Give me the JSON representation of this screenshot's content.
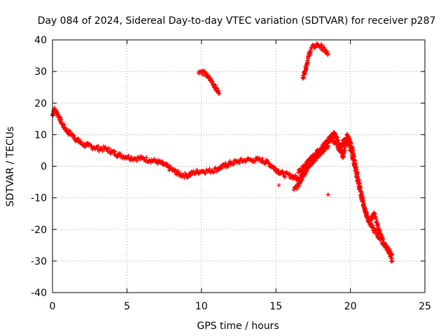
{
  "chart_data": {
    "type": "scatter",
    "title": "Day 084 of 2024, Sidereal Day-to-day VTEC variation (SDTVAR) for receiver p287",
    "xlabel": "GPS time / hours",
    "ylabel": "SDTVAR / TECUs",
    "xlim": [
      0,
      25
    ],
    "ylim": [
      -40,
      40
    ],
    "xticks": [
      0,
      5,
      10,
      15,
      20,
      25
    ],
    "yticks": [
      -40,
      -30,
      -20,
      -10,
      0,
      10,
      20,
      30,
      40
    ],
    "xtick_labels": [
      "0",
      "5",
      "10",
      "15",
      "20",
      "25"
    ],
    "ytick_labels": [
      "-40",
      "-30",
      "-20",
      "-10",
      "0",
      "10",
      "20",
      "30",
      "40"
    ],
    "grid": true,
    "marker": "+",
    "colors": {
      "series": "#ff0000",
      "grid": "#a0a0a0",
      "frame": "#000000"
    },
    "series": [
      {
        "name": "main",
        "x": [
          0.0,
          0.1,
          0.3,
          0.5,
          0.7,
          1.0,
          1.3,
          1.6,
          2.0,
          2.4,
          2.8,
          3.2,
          3.6,
          4.0,
          4.5,
          5.0,
          5.5,
          6.0,
          6.5,
          7.0,
          7.5,
          8.0,
          8.5,
          9.0,
          9.5,
          10.0,
          10.5,
          11.0,
          11.5,
          12.0,
          12.5,
          13.0,
          13.5,
          14.0,
          14.5,
          15.0,
          15.5,
          16.0,
          16.5,
          17.0,
          17.5,
          18.0,
          18.3
        ],
        "y": [
          16.0,
          18.0,
          17.0,
          15.0,
          13.0,
          11.0,
          10.0,
          8.5,
          7.0,
          6.5,
          6.0,
          5.5,
          5.5,
          4.5,
          3.5,
          3.0,
          2.5,
          2.5,
          2.0,
          1.5,
          0.5,
          -1.0,
          -2.5,
          -3.0,
          -2.0,
          -1.5,
          -1.5,
          -1.0,
          0.0,
          1.0,
          1.5,
          2.0,
          2.0,
          2.0,
          1.0,
          -1.0,
          -2.5,
          -3.0,
          -4.0,
          -1.0,
          1.5,
          4.5,
          6.5
        ]
      },
      {
        "name": "segment-10h",
        "x": [
          9.8,
          10.0,
          10.2,
          10.4,
          10.6,
          10.8,
          11.0,
          11.2
        ],
        "y": [
          29.5,
          29.8,
          29.5,
          28.5,
          27.5,
          26.0,
          24.5,
          23.0
        ]
      },
      {
        "name": "segment-17h",
        "x": [
          16.8,
          17.0,
          17.2,
          17.4,
          17.6,
          17.8,
          18.0,
          18.2,
          18.5
        ],
        "y": [
          28.0,
          31.0,
          35.0,
          37.5,
          38.0,
          38.5,
          38.0,
          37.0,
          35.5
        ]
      },
      {
        "name": "evening-a",
        "x": [
          16.2,
          16.5,
          16.8,
          17.2,
          17.6,
          18.0,
          18.4,
          18.7,
          19.0,
          19.3,
          19.6,
          19.9,
          20.2,
          20.5,
          20.8,
          21.1,
          21.4,
          21.7,
          22.0,
          22.3,
          22.6,
          22.8
        ],
        "y": [
          -7.5,
          -6.0,
          -3.0,
          0.0,
          2.5,
          4.5,
          6.0,
          9.0,
          7.5,
          5.0,
          8.5,
          7.0,
          2.0,
          -5.0,
          -11.0,
          -16.0,
          -19.0,
          -21.0,
          -23.0,
          -25.0,
          -27.0,
          -30.0
        ]
      },
      {
        "name": "evening-b",
        "x": [
          16.5,
          17.0,
          17.5,
          18.0,
          18.5,
          18.9,
          19.2,
          19.5,
          19.8,
          20.1,
          20.4,
          20.7,
          21.0,
          21.3,
          21.6,
          21.9,
          22.2,
          22.5,
          22.8
        ],
        "y": [
          -2.0,
          0.5,
          3.0,
          5.5,
          8.0,
          10.5,
          7.5,
          3.0,
          10.0,
          6.0,
          -1.0,
          -8.0,
          -14.0,
          -17.5,
          -15.0,
          -20.0,
          -24.0,
          -26.0,
          -28.0
        ]
      },
      {
        "name": "outliers",
        "x": [
          15.2,
          18.5
        ],
        "y": [
          -6.0,
          -9.0
        ]
      }
    ]
  }
}
